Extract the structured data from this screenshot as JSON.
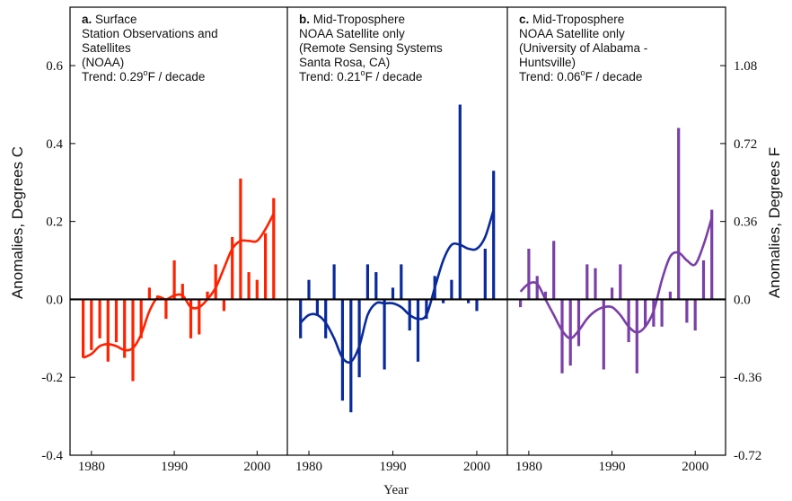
{
  "chart_data": {
    "type": "bar",
    "xlabel": "Year",
    "ylabel_left": "Anomalies, Degrees C",
    "ylabel_right": "Anomalies, Degrees F",
    "ylim": [
      -0.4,
      0.75
    ],
    "yticks_left": [
      "-0.4",
      "-0.2",
      "0.0",
      "0.2",
      "0.4",
      "0.6"
    ],
    "yticks_left_values": [
      -0.4,
      -0.2,
      0.0,
      0.2,
      0.4,
      0.6
    ],
    "yticks_right": [
      "-0.72",
      "-0.36",
      "0.0",
      "0.36",
      "0.72",
      "1.08"
    ],
    "yticks_right_values": [
      -0.4,
      -0.2,
      0.0,
      0.2,
      0.4,
      0.6
    ],
    "xlim": [
      1978.5,
      2003
    ],
    "xticks": [
      "1980",
      "1990",
      "2000"
    ],
    "xticks_values": [
      1980,
      1990,
      2000
    ],
    "grid": false,
    "panels": [
      {
        "letter": "a.",
        "title_lines": [
          " Surface",
          "Station Observations and",
          "Satellites",
          "(NOAA)"
        ],
        "trend_prefix": "Trend: 0.29",
        "trend_suffix": "F / decade",
        "trend_degree": "o",
        "color": "#ff2200",
        "years": [
          1979,
          1980,
          1981,
          1982,
          1983,
          1984,
          1985,
          1986,
          1987,
          1988,
          1989,
          1990,
          1991,
          1992,
          1993,
          1994,
          1995,
          1996,
          1997,
          1998,
          1999,
          2000,
          2001,
          2002
        ],
        "values": [
          -0.15,
          -0.13,
          -0.1,
          -0.16,
          -0.11,
          -0.15,
          -0.21,
          -0.1,
          0.03,
          0.01,
          -0.05,
          0.1,
          0.04,
          -0.1,
          -0.09,
          0.02,
          0.09,
          -0.03,
          0.16,
          0.31,
          0.07,
          0.05,
          0.17,
          0.26
        ],
        "smooth_x": [
          1979,
          1980,
          1981,
          1982,
          1983,
          1984,
          1985,
          1986,
          1987,
          1988,
          1989,
          1990,
          1991,
          1992,
          1993,
          1994,
          1995,
          1996,
          1997,
          1998,
          1999,
          2000,
          2001,
          2002
        ],
        "smooth_y": [
          -0.15,
          -0.14,
          -0.12,
          -0.115,
          -0.12,
          -0.13,
          -0.125,
          -0.09,
          -0.03,
          0.005,
          0.0,
          0.01,
          0.01,
          -0.02,
          -0.02,
          0.0,
          0.03,
          0.08,
          0.13,
          0.15,
          0.15,
          0.15,
          0.18,
          0.22
        ]
      },
      {
        "letter": "b.",
        "title_lines": [
          " Mid-Troposphere",
          "NOAA Satellite only",
          "(Remote Sensing Systems",
          "Santa Rosa, CA)"
        ],
        "trend_prefix": "Trend: 0.21",
        "trend_suffix": "F / decade",
        "trend_degree": "o",
        "color": "#0a2a9c",
        "years": [
          1979,
          1980,
          1981,
          1982,
          1983,
          1984,
          1985,
          1986,
          1987,
          1988,
          1989,
          1990,
          1991,
          1992,
          1993,
          1994,
          1995,
          1996,
          1997,
          1998,
          1999,
          2000,
          2001,
          2002
        ],
        "values": [
          -0.1,
          0.05,
          -0.04,
          -0.1,
          0.09,
          -0.26,
          -0.29,
          -0.2,
          0.09,
          0.07,
          -0.18,
          0.03,
          0.09,
          -0.08,
          -0.16,
          -0.05,
          0.06,
          -0.01,
          0.05,
          0.5,
          -0.01,
          -0.03,
          0.13,
          0.33
        ],
        "smooth_x": [
          1979,
          1980,
          1981,
          1982,
          1983,
          1984,
          1985,
          1986,
          1987,
          1988,
          1989,
          1990,
          1991,
          1992,
          1993,
          1994,
          1995,
          1996,
          1997,
          1998,
          1999,
          2000,
          2001,
          2002
        ],
        "smooth_y": [
          -0.06,
          -0.04,
          -0.04,
          -0.06,
          -0.1,
          -0.15,
          -0.16,
          -0.12,
          -0.04,
          -0.01,
          -0.01,
          -0.01,
          -0.02,
          -0.04,
          -0.05,
          -0.04,
          0.03,
          0.1,
          0.14,
          0.14,
          0.13,
          0.13,
          0.16,
          0.23
        ]
      },
      {
        "letter": "c.",
        "title_lines": [
          " Mid-Troposphere",
          "NOAA Satellite only",
          "(University of Alabama -",
          "Huntsville)"
        ],
        "trend_prefix": "Trend: 0.06",
        "trend_suffix": "F / decade",
        "trend_degree": "o",
        "color": "#7b3fa8",
        "years": [
          1979,
          1980,
          1981,
          1982,
          1983,
          1984,
          1985,
          1986,
          1987,
          1988,
          1989,
          1990,
          1991,
          1992,
          1993,
          1994,
          1995,
          1996,
          1997,
          1998,
          1999,
          2000,
          2001,
          2002
        ],
        "values": [
          -0.02,
          0.13,
          0.06,
          0.02,
          0.15,
          -0.19,
          -0.17,
          -0.12,
          0.09,
          0.08,
          -0.18,
          0.03,
          0.09,
          -0.11,
          -0.19,
          -0.07,
          -0.07,
          -0.07,
          0.02,
          0.44,
          -0.06,
          -0.08,
          0.1,
          0.23
        ],
        "smooth_x": [
          1979,
          1980,
          1981,
          1982,
          1983,
          1984,
          1985,
          1986,
          1987,
          1988,
          1989,
          1990,
          1991,
          1992,
          1993,
          1994,
          1995,
          1996,
          1997,
          1998,
          1999,
          2000,
          2001,
          2002
        ],
        "smooth_y": [
          0.02,
          0.04,
          0.04,
          0.0,
          -0.04,
          -0.08,
          -0.1,
          -0.08,
          -0.05,
          -0.03,
          -0.02,
          -0.02,
          -0.04,
          -0.07,
          -0.085,
          -0.07,
          -0.03,
          0.05,
          0.11,
          0.12,
          0.1,
          0.09,
          0.14,
          0.21
        ]
      }
    ]
  }
}
